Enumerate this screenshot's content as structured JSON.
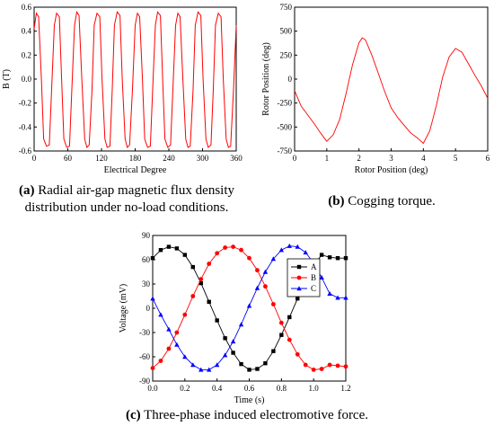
{
  "captions": {
    "a_letter": "(a)",
    "a_line1": "Radial air-gap magnetic flux density",
    "a_line2": "distribution under no-load conditions.",
    "b_letter": "(b)",
    "b_text": "Cogging torque.",
    "c_letter": "(c)",
    "c_text": "Three-phase induced electromotive force."
  },
  "chart_data": [
    {
      "id": "a",
      "type": "line",
      "xlabel": "Electrical Degree",
      "ylabel": "B (T)",
      "xlim": [
        0,
        360
      ],
      "ylim": [
        -0.6,
        0.6
      ],
      "xticks": [
        0,
        60,
        120,
        180,
        240,
        300,
        360
      ],
      "yticks": [
        0.6,
        0.4,
        0.2,
        0.0,
        -0.2,
        -0.4,
        -0.6
      ],
      "ytick_labels": [
        "0.6",
        "0.4",
        "0.2",
        "0.0",
        "-0.2",
        "-0.4",
        "-0.6"
      ],
      "series": [
        {
          "color": "#ff0000",
          "x": [
            0,
            4,
            8,
            13,
            17,
            22,
            27,
            31,
            36,
            40,
            45,
            49,
            53,
            58,
            63,
            67,
            72,
            76,
            80,
            85,
            90,
            94,
            98,
            103,
            107,
            112,
            117,
            121,
            126,
            130,
            135,
            139,
            143,
            148,
            153,
            157,
            162,
            166,
            170,
            175,
            180,
            184,
            188,
            193,
            197,
            202,
            207,
            211,
            216,
            220,
            225,
            229,
            233,
            238,
            243,
            247,
            252,
            256,
            260,
            265,
            270,
            274,
            278,
            283,
            287,
            292,
            297,
            301,
            306,
            310,
            315,
            319,
            323,
            328,
            333,
            337,
            342,
            346,
            350,
            355,
            360
          ],
          "y": [
            0.42,
            0.55,
            0.52,
            0.0,
            -0.5,
            -0.56,
            -0.55,
            -0.1,
            0.45,
            0.55,
            0.52,
            0.0,
            -0.5,
            -0.57,
            -0.56,
            -0.1,
            0.45,
            0.56,
            0.53,
            0.0,
            -0.5,
            -0.57,
            -0.55,
            -0.1,
            0.45,
            0.55,
            0.52,
            0.0,
            -0.5,
            -0.57,
            -0.56,
            -0.1,
            0.45,
            0.56,
            0.53,
            0.0,
            -0.5,
            -0.57,
            -0.55,
            -0.1,
            0.45,
            0.55,
            0.52,
            0.0,
            -0.5,
            -0.57,
            -0.56,
            -0.1,
            0.45,
            0.56,
            0.53,
            0.0,
            -0.5,
            -0.57,
            -0.55,
            -0.1,
            0.45,
            0.55,
            0.52,
            0.0,
            -0.5,
            -0.57,
            -0.56,
            -0.1,
            0.45,
            0.56,
            0.53,
            0.0,
            -0.5,
            -0.57,
            -0.55,
            -0.1,
            0.45,
            0.55,
            0.52,
            0.0,
            -0.5,
            -0.57,
            -0.56,
            -0.1,
            0.45
          ]
        }
      ]
    },
    {
      "id": "b",
      "type": "line",
      "xlabel": "Rotor Position (deg)",
      "ylabel": "Rotor Position (deg)",
      "xlim": [
        0,
        6
      ],
      "ylim": [
        -750,
        750
      ],
      "xticks": [
        0,
        1,
        2,
        3,
        4,
        5,
        6
      ],
      "yticks": [
        750,
        500,
        250,
        0,
        -250,
        -500,
        -750
      ],
      "ytick_labels": [
        "750",
        "500",
        "250",
        "0",
        "-250",
        "-500",
        "-750"
      ],
      "series": [
        {
          "color": "#ff0000",
          "x": [
            0,
            0.2,
            0.4,
            0.6,
            0.8,
            1.0,
            1.2,
            1.4,
            1.6,
            1.8,
            2.0,
            2.1,
            2.2,
            2.4,
            2.6,
            2.8,
            3.0,
            3.2,
            3.4,
            3.6,
            3.8,
            4.0,
            4.2,
            4.4,
            4.6,
            4.8,
            5.0,
            5.2,
            5.4,
            5.6,
            5.8,
            6.0
          ],
          "y": [
            -120,
            -280,
            -370,
            -460,
            -560,
            -650,
            -580,
            -420,
            -150,
            150,
            380,
            430,
            410,
            250,
            60,
            -130,
            -300,
            -400,
            -480,
            -560,
            -610,
            -670,
            -540,
            -280,
            20,
            230,
            320,
            280,
            160,
            40,
            -70,
            -200
          ]
        }
      ]
    },
    {
      "id": "c",
      "type": "line",
      "xlabel": "Time (s)",
      "ylabel": "Voltage (mV)",
      "xlim": [
        0,
        1.2
      ],
      "ylim": [
        -90,
        90
      ],
      "xticks": [
        0.0,
        0.2,
        0.4,
        0.6,
        0.8,
        1.0,
        1.2
      ],
      "xtick_labels": [
        "0.0",
        "0.2",
        "0.4",
        "0.6",
        "0.8",
        "1.0",
        "1.2"
      ],
      "yticks": [
        90,
        60,
        30,
        0,
        -30,
        -60,
        -90
      ],
      "ytick_labels": [
        "90",
        "60",
        "30",
        "0",
        "-30",
        "-60",
        "-90"
      ],
      "legend_position": "top-right",
      "series": [
        {
          "name": "A",
          "color": "#000000",
          "marker": "square",
          "x": [
            0.0,
            0.05,
            0.1,
            0.15,
            0.2,
            0.25,
            0.3,
            0.35,
            0.4,
            0.45,
            0.5,
            0.55,
            0.6,
            0.65,
            0.7,
            0.75,
            0.8,
            0.85,
            0.9,
            0.95,
            1.0,
            1.05,
            1.1,
            1.15,
            1.2
          ],
          "y": [
            62,
            72,
            76,
            74,
            66,
            51,
            31,
            8,
            -15,
            -37,
            -55,
            -69,
            -76,
            -75,
            -68,
            -53,
            -33,
            -11,
            12,
            34,
            53,
            66,
            63,
            62,
            62
          ]
        },
        {
          "name": "B",
          "color": "#ff0000",
          "marker": "circle",
          "x": [
            0.0,
            0.05,
            0.1,
            0.15,
            0.2,
            0.25,
            0.3,
            0.35,
            0.4,
            0.45,
            0.5,
            0.55,
            0.6,
            0.65,
            0.7,
            0.75,
            0.8,
            0.85,
            0.9,
            0.95,
            1.0,
            1.05,
            1.1,
            1.15,
            1.2
          ],
          "y": [
            -74,
            -65,
            -50,
            -30,
            -8,
            15,
            36,
            55,
            68,
            75,
            76,
            72,
            62,
            47,
            27,
            5,
            -18,
            -39,
            -57,
            -70,
            -76,
            -75,
            -70,
            -71,
            -72
          ]
        },
        {
          "name": "C",
          "color": "#0000ff",
          "marker": "triangle",
          "x": [
            0.0,
            0.05,
            0.1,
            0.15,
            0.2,
            0.25,
            0.3,
            0.35,
            0.4,
            0.45,
            0.5,
            0.55,
            0.6,
            0.65,
            0.7,
            0.75,
            0.8,
            0.85,
            0.9,
            0.95,
            1.0,
            1.05,
            1.1,
            1.15,
            1.2
          ],
          "y": [
            12,
            -8,
            -26,
            -45,
            -60,
            -70,
            -76,
            -76,
            -70,
            -58,
            -41,
            -20,
            3,
            25,
            45,
            61,
            72,
            77,
            76,
            69,
            56,
            38,
            18,
            13,
            13
          ]
        }
      ]
    }
  ]
}
